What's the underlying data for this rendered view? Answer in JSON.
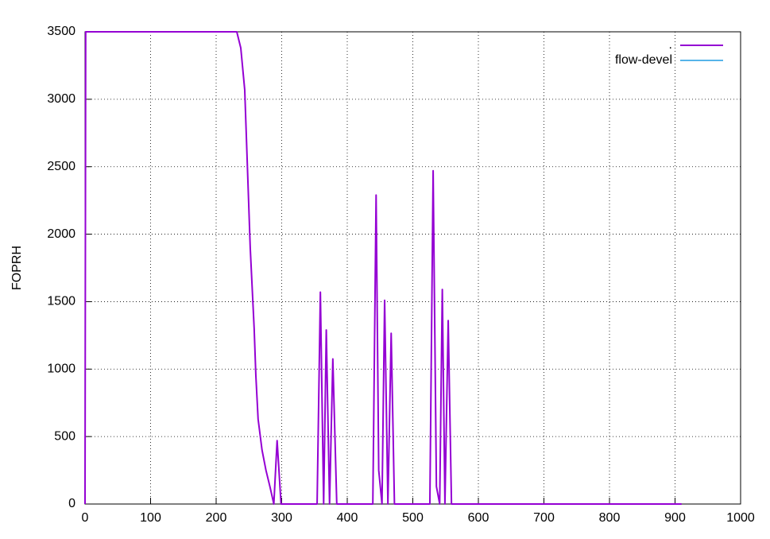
{
  "chart_data": {
    "type": "line",
    "ylabel": "FOPRH",
    "x": [
      0,
      1,
      231.5,
      237.6,
      243.6,
      252,
      258,
      260.6,
      264,
      270,
      276,
      282,
      288,
      293,
      299,
      354,
      359,
      364,
      368,
      373,
      378,
      384,
      439,
      444,
      448,
      453,
      457,
      462,
      467,
      472,
      526,
      531,
      536,
      541,
      545,
      549,
      554,
      559,
      910
    ],
    "series": [
      {
        "name": ".",
        "color": "#9400d3",
        "values": [
          0,
          3500,
          3500,
          3380,
          3070,
          1900,
          1300,
          950,
          630,
          400,
          250,
          130,
          0,
          470,
          0,
          0,
          1570,
          0,
          1290,
          0,
          1075,
          0,
          0,
          2290,
          250,
          0,
          1510,
          0,
          1265,
          0,
          0,
          2470,
          130,
          0,
          1590,
          0,
          1360,
          0,
          0
        ]
      },
      {
        "name": "flow-devel",
        "color": "#56b4e9",
        "values": [
          null,
          null,
          null,
          null,
          null,
          null,
          null,
          null,
          null,
          null,
          null,
          null,
          null,
          null,
          null,
          null,
          null,
          null,
          null,
          null,
          null,
          null,
          null,
          null,
          null,
          null,
          null,
          null,
          null,
          null,
          null,
          null,
          null,
          null,
          null,
          null,
          null,
          null,
          null
        ]
      }
    ],
    "xlim": [
      0,
      1000
    ],
    "xticks": [
      0,
      100,
      200,
      300,
      400,
      500,
      600,
      700,
      800,
      900,
      1000
    ],
    "ylim": [
      0,
      3500
    ],
    "yticks": [
      0,
      500,
      1000,
      1500,
      2000,
      2500,
      3000,
      3500
    ],
    "grid": true,
    "legend": "top-right"
  }
}
